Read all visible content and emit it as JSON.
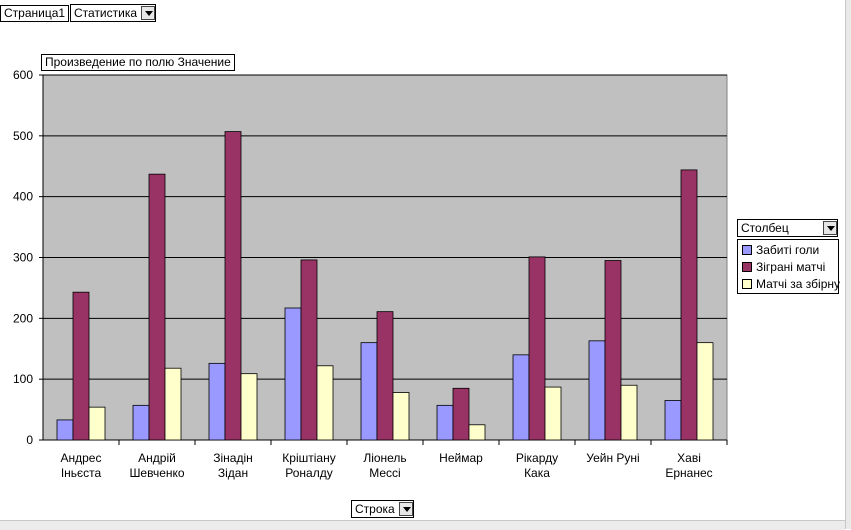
{
  "page_field": {
    "label": "Страница1",
    "value": "Статистика"
  },
  "data_field": {
    "label": "Произведение по полю Значение"
  },
  "column_field": {
    "label": "Столбец"
  },
  "row_field": {
    "label": "Строка"
  },
  "colors": {
    "background": "#c0c0c0",
    "series": [
      "#9999ff",
      "#993366",
      "#ffffcc"
    ]
  },
  "chart_data": {
    "type": "bar",
    "categories": [
      [
        "Андрес",
        "Іньєста"
      ],
      [
        "Андрій",
        "Шевченко"
      ],
      [
        "Зінадін",
        "Зідан"
      ],
      [
        "Кріштіану",
        "Роналду"
      ],
      [
        "Ліонель",
        "Мессі"
      ],
      [
        "Неймар"
      ],
      [
        "Рікарду",
        "Кака"
      ],
      [
        "Уейн Руні"
      ],
      [
        "Хаві",
        "Ернанес"
      ]
    ],
    "series": [
      {
        "name": "Забиті голи",
        "values": [
          33,
          57,
          126,
          217,
          160,
          57,
          140,
          163,
          65
        ]
      },
      {
        "name": "Зіграні матчі",
        "values": [
          243,
          437,
          507,
          296,
          211,
          85,
          301,
          295,
          444
        ]
      },
      {
        "name": "Матчі за збірну",
        "values": [
          54,
          118,
          109,
          122,
          78,
          25,
          87,
          90,
          160
        ]
      }
    ],
    "ylim": [
      0,
      600
    ],
    "yticks": [
      0,
      100,
      200,
      300,
      400,
      500,
      600
    ],
    "grid": true,
    "legend_position": "right"
  }
}
